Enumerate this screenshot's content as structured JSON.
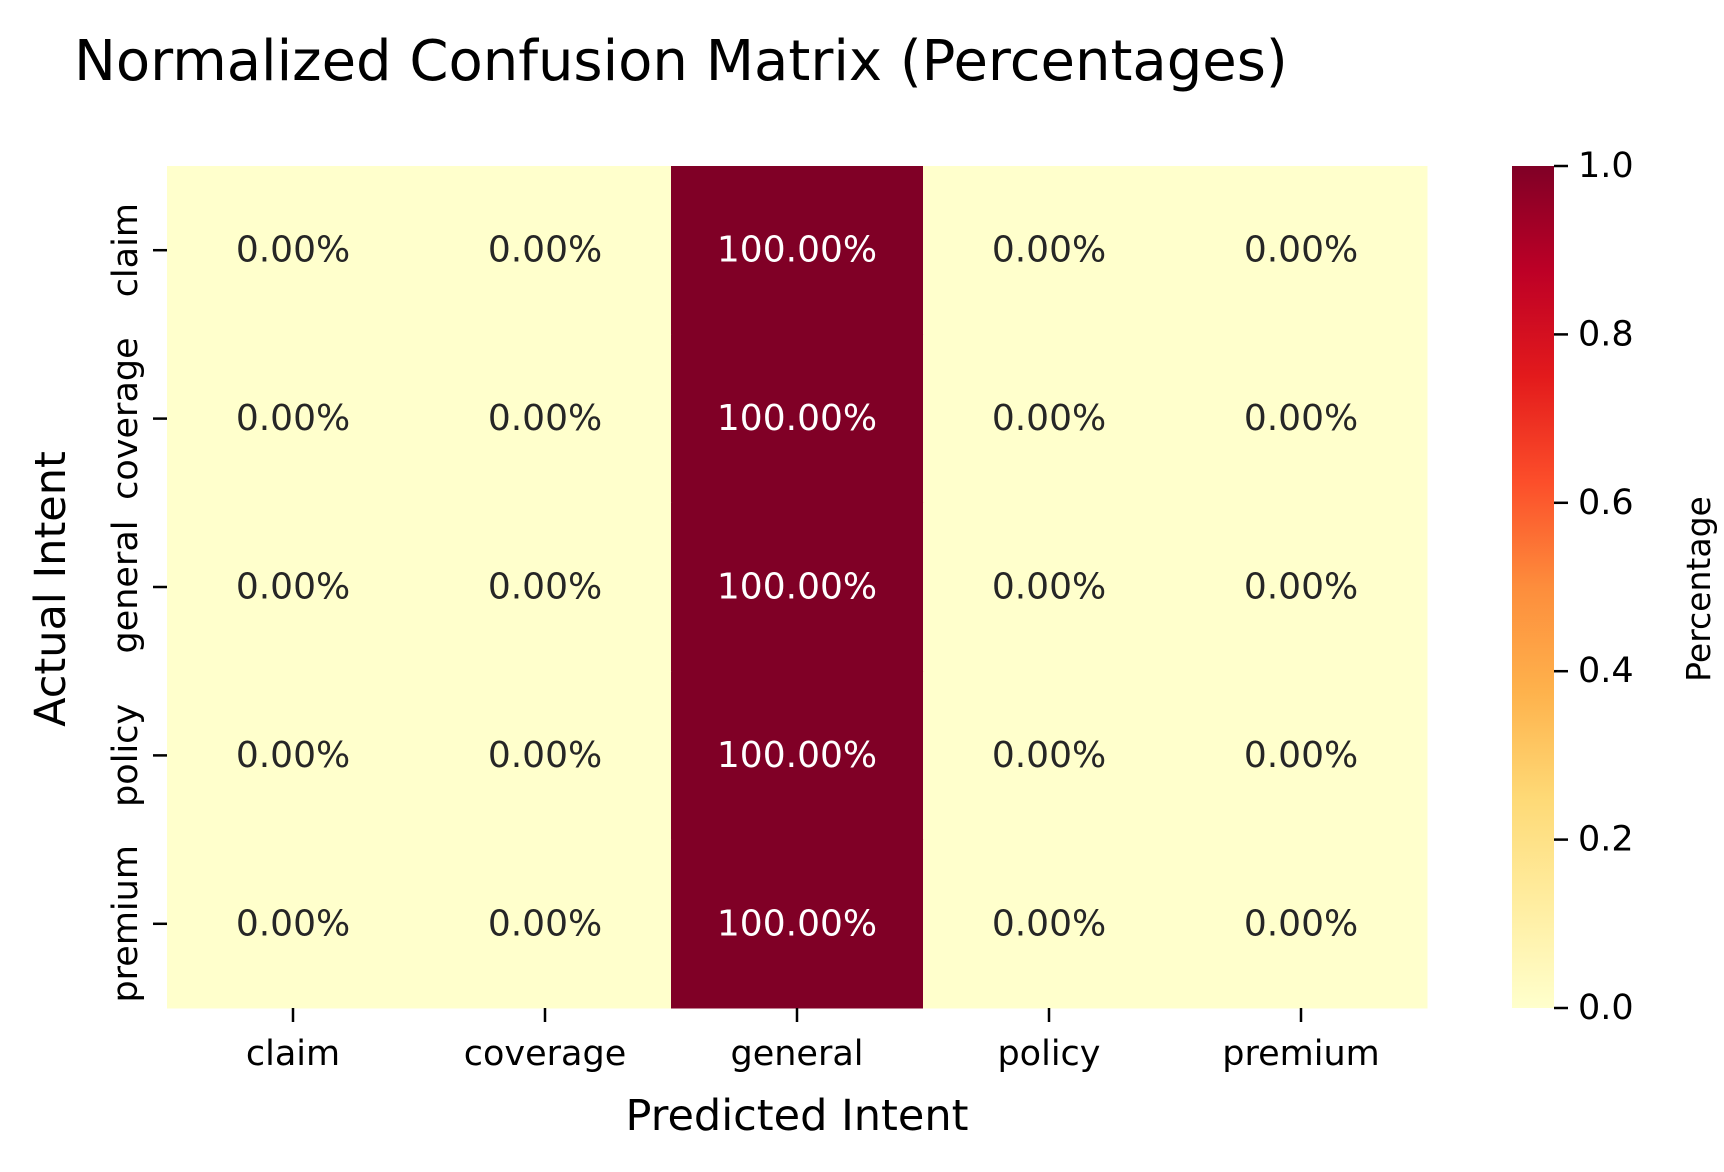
{
  "chart_data": {
    "type": "heatmap",
    "title": "Normalized Confusion Matrix (Percentages)",
    "xlabel": "Predicted Intent",
    "ylabel": "Actual Intent",
    "x_categories": [
      "claim",
      "coverage",
      "general",
      "policy",
      "premium"
    ],
    "y_categories": [
      "claim",
      "coverage",
      "general",
      "policy",
      "premium"
    ],
    "values": [
      [
        0.0,
        0.0,
        1.0,
        0.0,
        0.0
      ],
      [
        0.0,
        0.0,
        1.0,
        0.0,
        0.0
      ],
      [
        0.0,
        0.0,
        1.0,
        0.0,
        0.0
      ],
      [
        0.0,
        0.0,
        1.0,
        0.0,
        0.0
      ],
      [
        0.0,
        0.0,
        1.0,
        0.0,
        0.0
      ]
    ],
    "annotations": [
      [
        "0.00%",
        "0.00%",
        "100.00%",
        "0.00%",
        "0.00%"
      ],
      [
        "0.00%",
        "0.00%",
        "100.00%",
        "0.00%",
        "0.00%"
      ],
      [
        "0.00%",
        "0.00%",
        "100.00%",
        "0.00%",
        "0.00%"
      ],
      [
        "0.00%",
        "0.00%",
        "100.00%",
        "0.00%",
        "0.00%"
      ],
      [
        "0.00%",
        "0.00%",
        "100.00%",
        "0.00%",
        "0.00%"
      ]
    ],
    "colorbar": {
      "label": "Percentage",
      "range": [
        0.0,
        1.0
      ],
      "ticks": [
        "0.0",
        "0.2",
        "0.4",
        "0.6",
        "0.8",
        "1.0"
      ],
      "colormap": "YlOrRd",
      "colormap_stops": [
        "#ffffcc",
        "#ffeda0",
        "#fed976",
        "#feb24c",
        "#fd8d3c",
        "#fc4e2a",
        "#e31a1c",
        "#bd0026",
        "#800026"
      ]
    },
    "annotation_colors": {
      "on_light": "#262626",
      "on_dark": "#ffffff"
    },
    "grid": false,
    "legend": "none"
  }
}
